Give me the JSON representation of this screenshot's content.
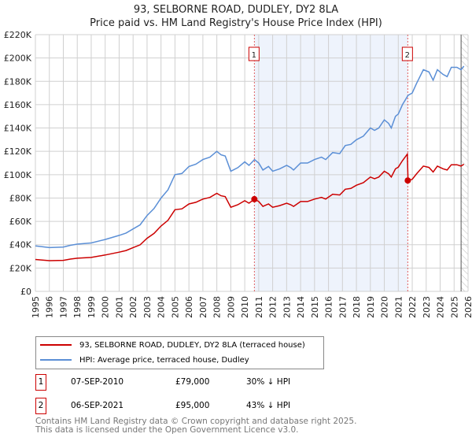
{
  "chart_data": {
    "type": "line",
    "title": "93, SELBORNE ROAD, DUDLEY, DY2 8LA",
    "subtitle": "Price paid vs. HM Land Registry's House Price Index (HPI)",
    "xlim": [
      1995,
      2026
    ],
    "ylim": [
      0,
      220000
    ],
    "xticks": [
      "1995",
      "1996",
      "1997",
      "1998",
      "1999",
      "2000",
      "2001",
      "2002",
      "2003",
      "2004",
      "2005",
      "2006",
      "2007",
      "2008",
      "2009",
      "2010",
      "2011",
      "2012",
      "2013",
      "2014",
      "2015",
      "2016",
      "2017",
      "2018",
      "2019",
      "2020",
      "2021",
      "2022",
      "2023",
      "2024",
      "2025",
      "2026"
    ],
    "yticks": [
      "£0",
      "£20K",
      "£40K",
      "£60K",
      "£80K",
      "£100K",
      "£120K",
      "£140K",
      "£160K",
      "£180K",
      "£200K",
      "£220K"
    ],
    "grid": true,
    "shaded_range": [
      2010.7,
      2021.7
    ],
    "hatched_after": 2025.5,
    "series": [
      {
        "name": "93, SELBORNE ROAD, DUDLEY, DY2 8LA (terraced house)",
        "color": "#cc0000",
        "x": [
          1995,
          1996,
          1997,
          1997.5,
          1998,
          1999,
          2000,
          2001,
          2001.5,
          2002,
          2002.5,
          2003,
          2003.5,
          2004,
          2004.5,
          2005,
          2005.5,
          2006,
          2006.5,
          2007,
          2007.5,
          2008,
          2008.3,
          2008.6,
          2009,
          2009.5,
          2010,
          2010.3,
          2010.7,
          2011,
          2011.3,
          2011.7,
          2012,
          2012.5,
          2013,
          2013.3,
          2013.5,
          2014,
          2014.5,
          2015,
          2015.5,
          2015.8,
          2016.3,
          2016.8,
          2017.2,
          2017.6,
          2018,
          2018.5,
          2019,
          2019.3,
          2019.6,
          2020,
          2020.3,
          2020.5,
          2020.8,
          2021,
          2021.3,
          2021.65,
          2021.7,
          2022,
          2022.3,
          2022.8,
          2023.2,
          2023.5,
          2023.8,
          2024.2,
          2024.5,
          2024.8,
          2025.2,
          2025.5,
          2025.7
        ],
        "values": [
          27.3,
          26.3,
          26.6,
          27.7,
          28.4,
          29.1,
          31.2,
          33.6,
          35,
          37.5,
          39.9,
          45.5,
          49.7,
          56,
          60.9,
          70,
          70.7,
          74.9,
          76.3,
          79.1,
          80.5,
          84,
          81.9,
          81.2,
          72.1,
          74.2,
          77.7,
          75.6,
          79,
          77,
          72.8,
          74.9,
          72.1,
          73.5,
          75.6,
          74.2,
          72.8,
          77,
          77,
          79.1,
          80.5,
          79.1,
          83.3,
          82.6,
          87.5,
          88.2,
          91,
          93.1,
          98,
          96.6,
          98,
          102.9,
          100.8,
          98,
          105,
          106.4,
          112,
          117.6,
          95,
          96,
          100.6,
          107.4,
          106.2,
          102.3,
          107.4,
          105.1,
          104,
          108.5,
          108.5,
          107.4,
          109
        ],
        "units": "thousand GBP"
      },
      {
        "name": "HPI: Average price, terraced house, Dudley",
        "color": "#5b8fd6",
        "x": [
          1995,
          1996,
          1997,
          1997.5,
          1998,
          1999,
          2000,
          2001,
          2001.5,
          2002,
          2002.5,
          2003,
          2003.5,
          2004,
          2004.5,
          2005,
          2005.5,
          2006,
          2006.5,
          2007,
          2007.5,
          2008,
          2008.3,
          2008.6,
          2009,
          2009.5,
          2010,
          2010.3,
          2010.7,
          2011,
          2011.3,
          2011.7,
          2012,
          2012.5,
          2013,
          2013.3,
          2013.5,
          2014,
          2014.5,
          2015,
          2015.5,
          2015.8,
          2016.3,
          2016.8,
          2017.2,
          2017.6,
          2018,
          2018.5,
          2019,
          2019.3,
          2019.6,
          2020,
          2020.3,
          2020.5,
          2020.8,
          2021,
          2021.3,
          2021.7,
          2022,
          2022.3,
          2022.8,
          2023.2,
          2023.5,
          2023.8,
          2024.2,
          2024.5,
          2024.8,
          2025.2,
          2025.5,
          2025.7
        ],
        "values": [
          39,
          37.5,
          38,
          39.5,
          40.5,
          41.5,
          44.5,
          48,
          50,
          53.5,
          57,
          65,
          71,
          80,
          87,
          100,
          101,
          107,
          109,
          113,
          115,
          120,
          117,
          116,
          103,
          106,
          111,
          108,
          113,
          110,
          104,
          107,
          103,
          105,
          108,
          106,
          104,
          110,
          110,
          113,
          115,
          113,
          119,
          118,
          125,
          126,
          130,
          133,
          140,
          138,
          140,
          147,
          144,
          140,
          150,
          152,
          160,
          168,
          170,
          178,
          190,
          188,
          181,
          190,
          186,
          184,
          192,
          192,
          190,
          193
        ],
        "units": "thousand GBP"
      }
    ],
    "annotations": [
      {
        "label": "1",
        "x": 2010.69,
        "y": 79
      },
      {
        "label": "2",
        "x": 2021.68,
        "y": 95
      }
    ]
  },
  "legend": {
    "entries": [
      "93, SELBORNE ROAD, DUDLEY, DY2 8LA (terraced house)",
      "HPI: Average price, terraced house, Dudley"
    ]
  },
  "sales": [
    {
      "n": "1",
      "date": "07-SEP-2010",
      "price": "£79,000",
      "hpi": "30% ↓ HPI"
    },
    {
      "n": "2",
      "date": "06-SEP-2021",
      "price": "£95,000",
      "hpi": "43% ↓ HPI"
    }
  ],
  "footer": [
    "Contains HM Land Registry data © Crown copyright and database right 2025.",
    "This data is licensed under the Open Government Licence v3.0."
  ]
}
